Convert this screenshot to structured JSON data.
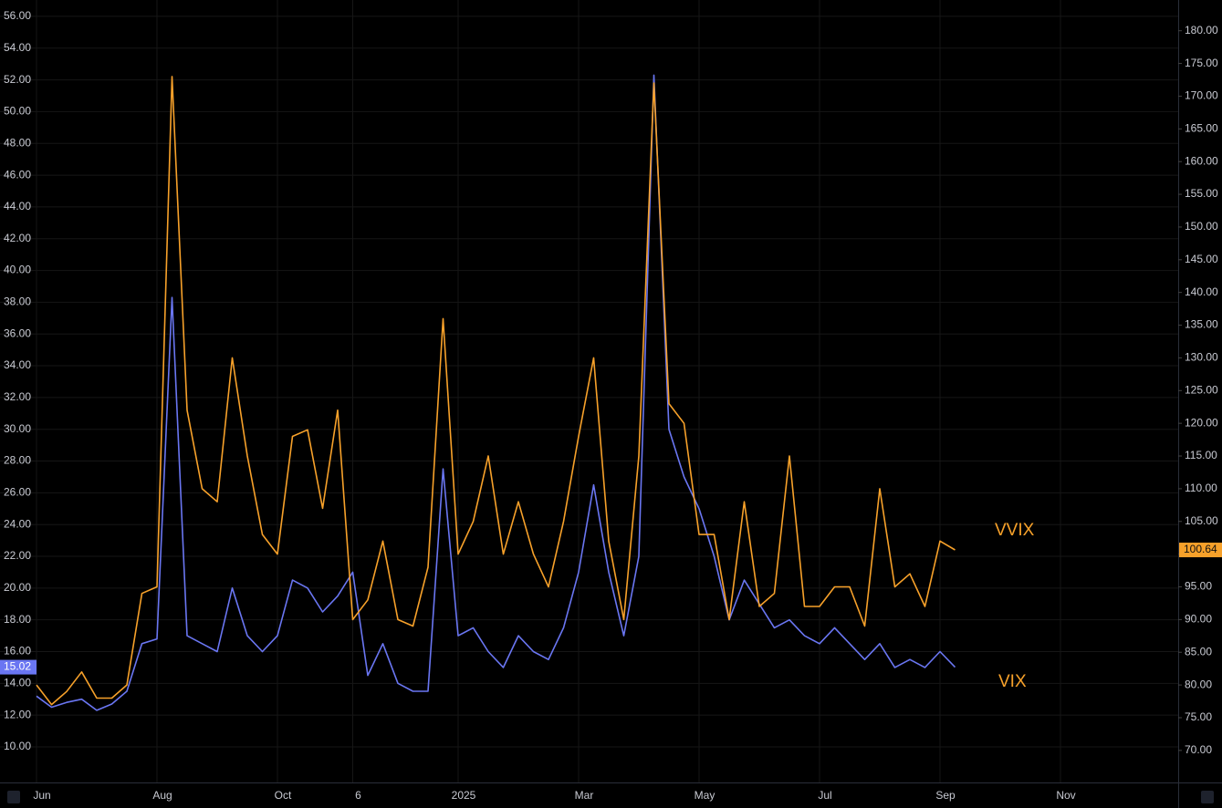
{
  "chart_data": {
    "type": "line",
    "categories": [
      "Jun",
      null,
      null,
      null,
      null,
      null,
      null,
      null,
      "Aug",
      null,
      null,
      null,
      null,
      null,
      null,
      null,
      "Oct",
      null,
      null,
      null,
      null,
      "6",
      null,
      null,
      null,
      null,
      null,
      null,
      "2025",
      null,
      null,
      null,
      null,
      null,
      null,
      null,
      "Mar",
      null,
      null,
      null,
      null,
      null,
      null,
      null,
      "May",
      null,
      null,
      null,
      null,
      null,
      null,
      null,
      "Jul",
      null,
      null,
      null,
      null,
      null,
      null,
      null,
      "Sep",
      null,
      null,
      null,
      null,
      null,
      null,
      null,
      "Nov",
      null,
      null,
      null,
      null,
      null,
      null,
      null
    ],
    "series": [
      {
        "name": "VIX",
        "color": "#6a76f2",
        "axis": "y",
        "values": [
          13.2,
          12.5,
          12.8,
          13.0,
          12.3,
          12.7,
          13.5,
          16.5,
          16.8,
          38.3,
          17,
          16.5,
          16,
          20,
          17,
          16,
          17,
          20.5,
          20,
          18.5,
          19.5,
          21,
          14.5,
          16.5,
          14,
          13.5,
          13.5,
          27.5,
          17,
          17.5,
          16,
          15,
          17,
          16,
          15.5,
          17.5,
          21,
          26.5,
          21,
          17,
          22,
          52.3,
          30,
          27,
          25,
          22,
          18,
          20.5,
          19,
          17.5,
          18,
          17,
          16.5,
          17.5,
          16.5,
          15.5,
          16.5,
          15,
          15.5,
          15,
          16,
          15.02,
          null,
          null,
          null,
          null,
          null,
          null,
          null,
          null,
          null,
          null,
          null,
          null,
          null,
          null
        ]
      },
      {
        "name": "VVIX",
        "color": "#f7a12a",
        "axis": "y2",
        "values": [
          80,
          77,
          79,
          82,
          78,
          78,
          80,
          94,
          95,
          173,
          122,
          110,
          108,
          130,
          115,
          103,
          100,
          118,
          119,
          107,
          122,
          90,
          93,
          102,
          90,
          89,
          98,
          136,
          100,
          105,
          115,
          100,
          108,
          100,
          95,
          105,
          118,
          130,
          102,
          90,
          115,
          172,
          123,
          120,
          103,
          103,
          90,
          108,
          92,
          94,
          115,
          92,
          92,
          95,
          95,
          89,
          110,
          95,
          97,
          92,
          102,
          100.64,
          null,
          null,
          null,
          null,
          null,
          null,
          null,
          null,
          null,
          null,
          null,
          null,
          null,
          null
        ]
      }
    ],
    "ylim": [
      7.76,
      57.03
    ],
    "yticks": [
      {
        "value": 10,
        "label": "10.00"
      },
      {
        "value": 12,
        "label": "12.00"
      },
      {
        "value": 14,
        "label": "14.00"
      },
      {
        "value": 16,
        "label": "16.00"
      },
      {
        "value": 18,
        "label": "18.00"
      },
      {
        "value": 20,
        "label": "20.00"
      },
      {
        "value": 22,
        "label": "22.00"
      },
      {
        "value": 24,
        "label": "24.00"
      },
      {
        "value": 26,
        "label": "26.00"
      },
      {
        "value": 28,
        "label": "28.00"
      },
      {
        "value": 30,
        "label": "30.00"
      },
      {
        "value": 32,
        "label": "32.00"
      },
      {
        "value": 34,
        "label": "34.00"
      },
      {
        "value": 36,
        "label": "36.00"
      },
      {
        "value": 38,
        "label": "38.00"
      },
      {
        "value": 40,
        "label": "40.00"
      },
      {
        "value": 42,
        "label": "42.00"
      },
      {
        "value": 44,
        "label": "44.00"
      },
      {
        "value": 46,
        "label": "46.00"
      },
      {
        "value": 48,
        "label": "48.00"
      },
      {
        "value": 50,
        "label": "50.00"
      },
      {
        "value": 52,
        "label": "52.00"
      },
      {
        "value": 54,
        "label": "54.00"
      },
      {
        "value": 56,
        "label": "56.00"
      }
    ],
    "y2lim": [
      65.1,
      184.7
    ],
    "y2ticks": [
      {
        "value": 70,
        "label": "70.00"
      },
      {
        "value": 75,
        "label": "75.00"
      },
      {
        "value": 80,
        "label": "80.00"
      },
      {
        "value": 85,
        "label": "85.00"
      },
      {
        "value": 90,
        "label": "90.00"
      },
      {
        "value": 95,
        "label": "95.00"
      },
      {
        "value": 100,
        "label": "100.00"
      },
      {
        "value": 105,
        "label": "105.00"
      },
      {
        "value": 110,
        "label": "110.00"
      },
      {
        "value": 115,
        "label": "115.00"
      },
      {
        "value": 120,
        "label": "120.00"
      },
      {
        "value": 125,
        "label": "125.00"
      },
      {
        "value": 130,
        "label": "130.00"
      },
      {
        "value": 135,
        "label": "135.00"
      },
      {
        "value": 140,
        "label": "140.00"
      },
      {
        "value": 145,
        "label": "145.00"
      },
      {
        "value": 150,
        "label": "150.00"
      },
      {
        "value": 155,
        "label": "155.00"
      },
      {
        "value": 160,
        "label": "160.00"
      },
      {
        "value": 165,
        "label": "165.00"
      },
      {
        "value": 170,
        "label": "170.00"
      },
      {
        "value": 175,
        "label": "175.00"
      },
      {
        "value": 180,
        "label": "180.00"
      }
    ],
    "grid": true
  }
}
